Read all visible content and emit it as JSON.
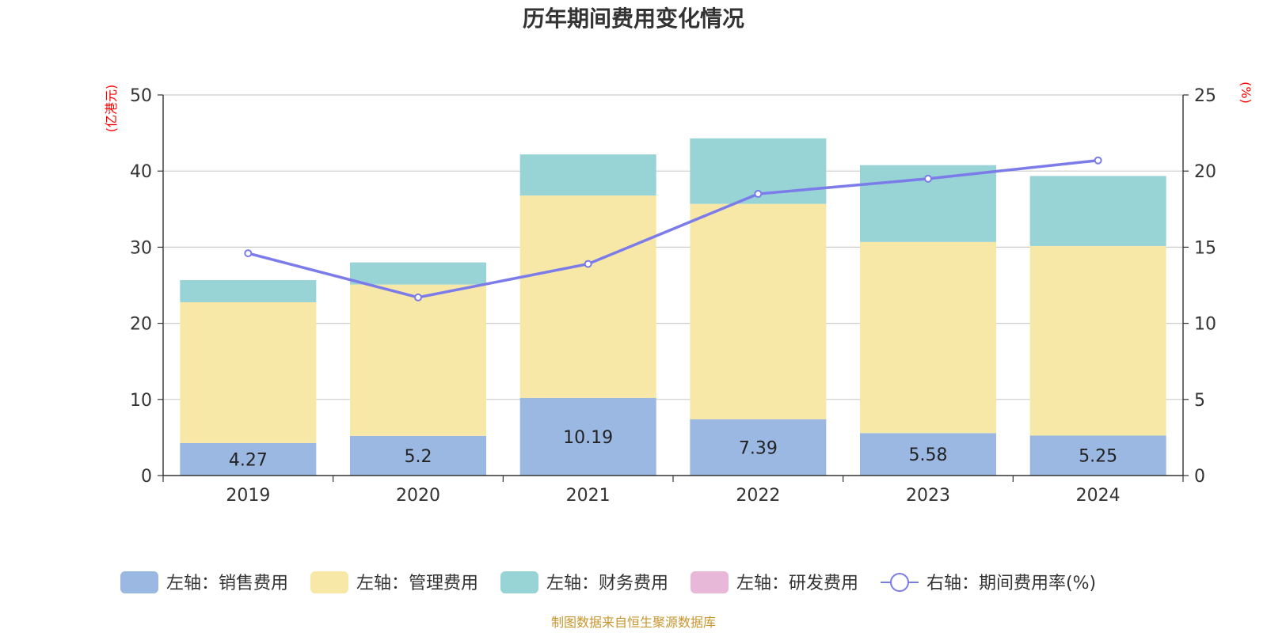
{
  "chart_data": {
    "type": "bar",
    "title": "历年期间费用变化情况",
    "categories": [
      "2019",
      "2020",
      "2021",
      "2022",
      "2023",
      "2024"
    ],
    "left_axis": {
      "unit": "(亿港元)",
      "ylim": [
        0,
        50
      ],
      "ticks": [
        0,
        10,
        20,
        30,
        40,
        50
      ]
    },
    "right_axis": {
      "unit": "(%)",
      "ylim": [
        0,
        25
      ],
      "ticks": [
        0,
        5,
        10,
        15,
        20,
        25
      ]
    },
    "stacked": true,
    "grid": true,
    "legend_position": "bottom",
    "series": [
      {
        "name": "左轴：销售费用",
        "color": "#9bb8e3",
        "axis": "left",
        "values": [
          4.27,
          5.2,
          10.19,
          7.39,
          5.58,
          5.25
        ],
        "show_labels": true
      },
      {
        "name": "左轴：管理费用",
        "color": "#f8e8a8",
        "axis": "left",
        "values": [
          18.5,
          19.9,
          26.6,
          28.3,
          25.1,
          24.9
        ],
        "show_labels": false
      },
      {
        "name": "左轴：财务费用",
        "color": "#98d4d6",
        "axis": "left",
        "values": [
          2.9,
          2.9,
          5.4,
          8.6,
          10.1,
          9.2
        ],
        "show_labels": false
      },
      {
        "name": "左轴：研发费用",
        "color": "#e8b8d8",
        "axis": "left",
        "values": [
          0,
          0,
          0,
          0,
          0,
          0
        ],
        "show_labels": false
      }
    ],
    "line_series": {
      "name": "右轴：期间费用率(%)",
      "color": "#7b7bea",
      "axis": "right",
      "values": [
        14.6,
        11.7,
        13.9,
        18.5,
        19.5,
        20.7
      ]
    },
    "source": "制图数据来自恒生聚源数据库"
  }
}
